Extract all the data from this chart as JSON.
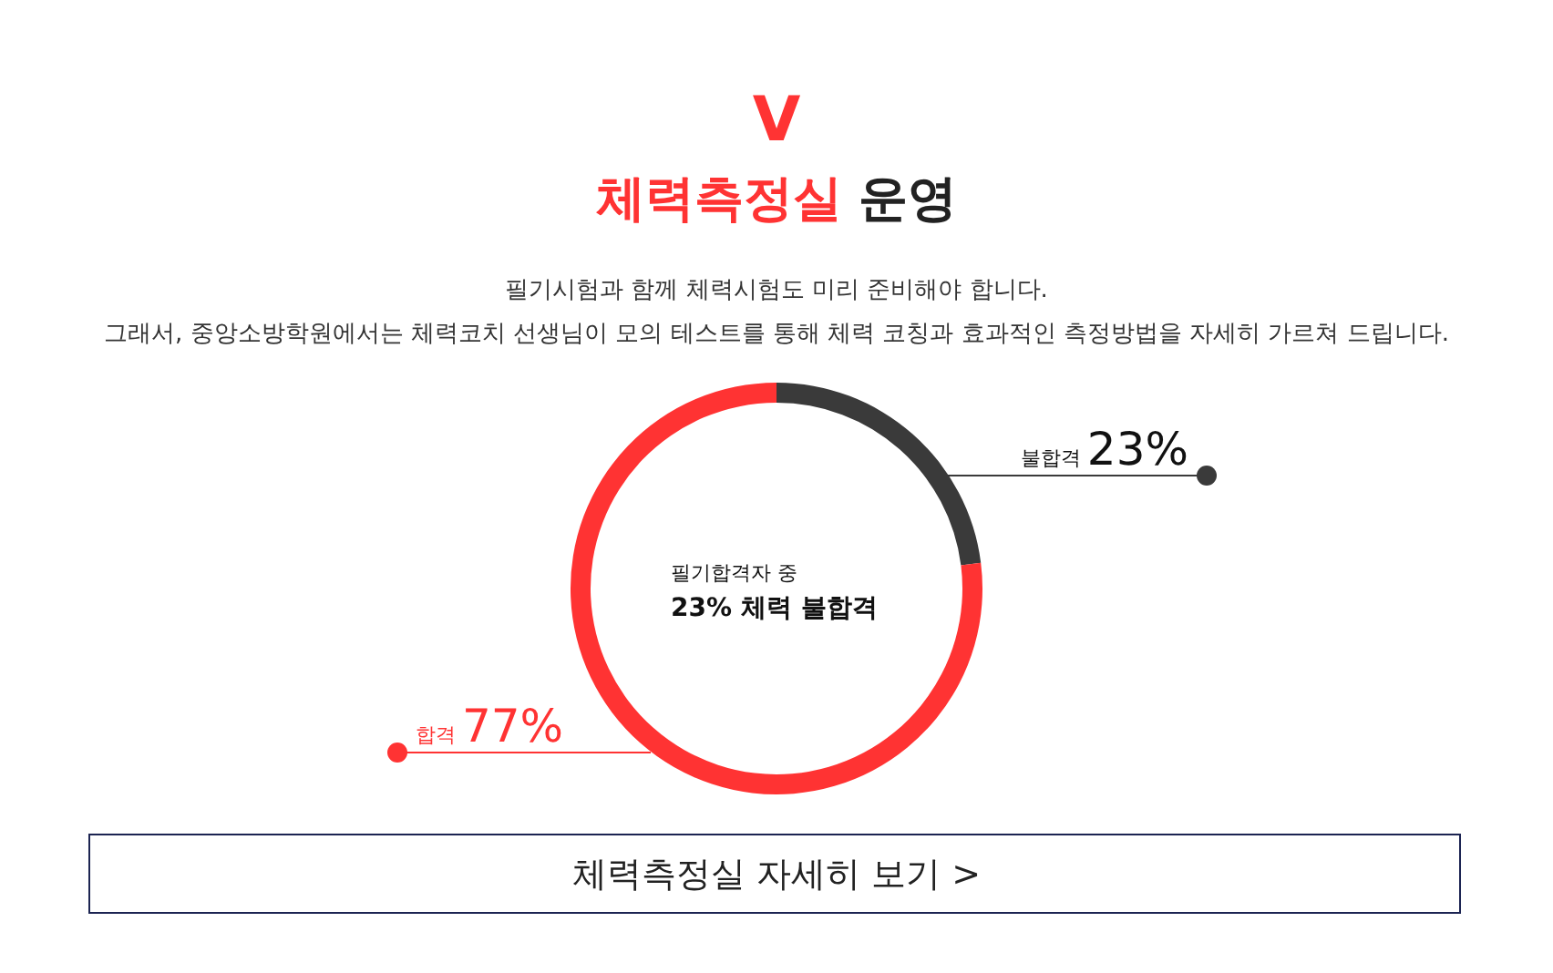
{
  "chart_data": {
    "type": "donut",
    "title": "체력측정실 운영",
    "subtitle": "필기시험과 함께 체력시험도 미리 준비해야 합니다.\n그래서, 중앙소방학원에서는 체력코치 선생님이 모의 테스트를 통해 체력 코칭과 효과적인 측정방법을 자세히 가르쳐 드립니다.",
    "categories": [
      "불합격",
      "합격"
    ],
    "values": [
      23,
      77
    ],
    "colors": [
      "#3a3a3a",
      "#ff3333"
    ],
    "value_labels": [
      "23%",
      "77%"
    ],
    "annotations": [
      "V",
      "필기합격자 중",
      "23% 체력 불합격",
      "체력측정실 자세히 보기 >"
    ]
  }
}
